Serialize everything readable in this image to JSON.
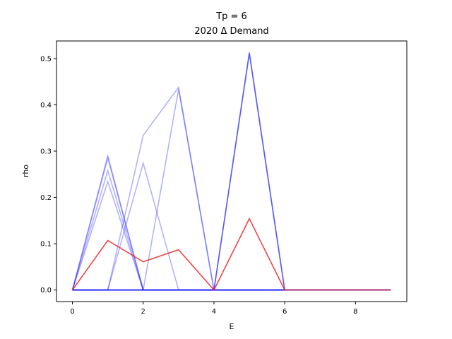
{
  "chart_data": {
    "type": "line",
    "title": "Tp = 6",
    "subtitle": "2020 Δ Demand",
    "xlabel": "E",
    "ylabel": "rho",
    "xlim": [
      -0.45,
      9.45
    ],
    "ylim": [
      -0.025,
      0.538
    ],
    "x_ticks": [
      0,
      2,
      4,
      6,
      8
    ],
    "y_ticks": [
      0.0,
      0.1,
      0.2,
      0.3,
      0.4,
      0.5
    ],
    "x_tick_labels": [
      "0",
      "2",
      "4",
      "6",
      "8"
    ],
    "y_tick_labels": [
      "0.0",
      "0.1",
      "0.2",
      "0.3",
      "0.4",
      "0.5"
    ],
    "grid": false,
    "x": [
      0,
      1,
      2,
      3,
      4,
      5,
      6,
      7,
      8,
      9
    ],
    "series": [
      {
        "color": "#0000ff",
        "opacity": 0.3,
        "values": [
          0,
          0.234,
          0,
          0,
          0,
          0,
          0,
          0,
          0,
          0
        ]
      },
      {
        "color": "#0000ff",
        "opacity": 0.3,
        "values": [
          0,
          0,
          0.274,
          0,
          0,
          0,
          0,
          0,
          0,
          0
        ]
      },
      {
        "color": "#0000ff",
        "opacity": 0.3,
        "values": [
          0,
          0.258,
          0,
          0,
          0,
          0,
          0,
          0,
          0,
          0
        ]
      },
      {
        "color": "#0000ff",
        "opacity": 0.3,
        "values": [
          0,
          0,
          0.334,
          0.438,
          0,
          0,
          0,
          0,
          0,
          0
        ]
      },
      {
        "color": "#0000ff",
        "opacity": 0.3,
        "values": [
          0,
          0.29,
          0,
          0,
          0,
          0,
          0,
          0,
          0,
          0
        ]
      },
      {
        "color": "#0000ff",
        "opacity": 0.3,
        "values": [
          0,
          0,
          0,
          0.434,
          0,
          0,
          0,
          0,
          0,
          0
        ]
      },
      {
        "color": "#0000ff",
        "opacity": 0.3,
        "values": [
          0,
          0.285,
          0,
          0,
          0,
          0,
          0,
          0,
          0,
          0
        ]
      },
      {
        "color": "#0000ff",
        "opacity": 0.3,
        "values": [
          0,
          0,
          0,
          0,
          0,
          0.513,
          0,
          0,
          0,
          0
        ]
      },
      {
        "color": "#0000ff",
        "opacity": 0.3,
        "values": [
          0,
          0,
          0,
          0,
          0,
          0.513,
          0,
          0,
          0,
          0
        ]
      },
      {
        "color": "#0000ff",
        "opacity": 0.3,
        "values": [
          0,
          0,
          0,
          0,
          0,
          0.51,
          0,
          0,
          0,
          0
        ]
      },
      {
        "color": "#0000ff",
        "opacity": 0.9,
        "values": [
          0,
          0,
          0,
          0,
          0,
          0,
          0,
          0,
          0,
          0
        ]
      },
      {
        "color": "#ee2222",
        "opacity": 0.85,
        "values": [
          0,
          0.107,
          0.061,
          0.087,
          0,
          0.154,
          0,
          0,
          0,
          0
        ]
      }
    ]
  }
}
